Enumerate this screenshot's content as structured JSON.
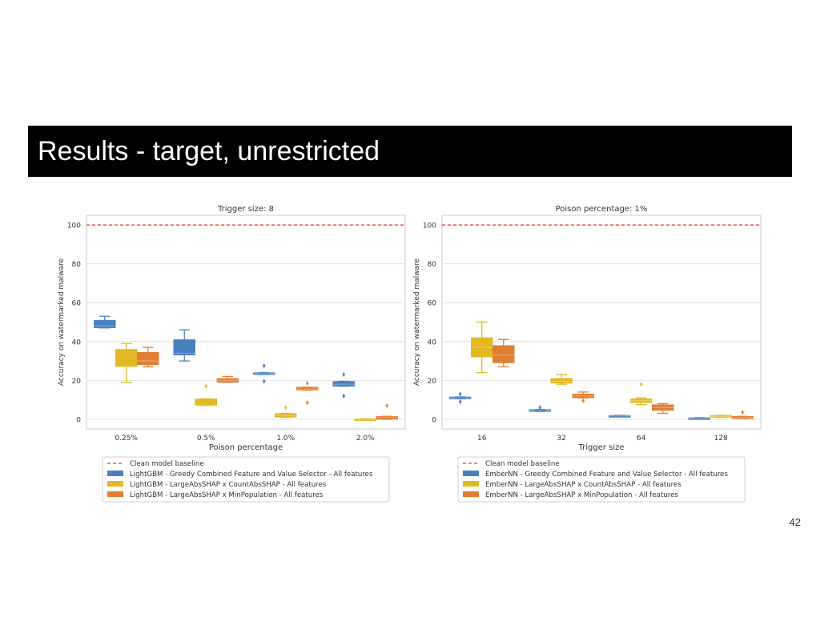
{
  "slide": {
    "title": "Results - target, unrestricted",
    "page_number": "42",
    "title_bar_color": "#000000"
  },
  "colors": {
    "baseline": "#e8312a",
    "greedy": "#4a7fbf",
    "countabs": "#e2b923",
    "minpop": "#e07f34"
  },
  "chart_data": [
    {
      "type": "box",
      "title": "Trigger size: 8",
      "xlabel": "Poison percentage",
      "ylabel": "Accuracy on watermarked malware",
      "categories": [
        "0.25%",
        "0.5%",
        "1.0%",
        "2.0%"
      ],
      "ylim": [
        -5,
        105
      ],
      "yticks": [
        0,
        20,
        40,
        60,
        80,
        100
      ],
      "grid": true,
      "baseline": {
        "name": "Clean model baseline",
        "value": 100
      },
      "legend_position": "below",
      "series": [
        {
          "name": "LightGBM - Greedy Combined Feature and Value Selector - All features",
          "color_key": "greedy",
          "boxes": [
            {
              "min": 47,
              "q1": 47,
              "median": 48,
              "q3": 51,
              "max": 53,
              "outliers": []
            },
            {
              "min": 30,
              "q1": 33,
              "median": 34,
              "q3": 41,
              "max": 46,
              "outliers": []
            },
            {
              "min": 23,
              "q1": 23,
              "median": 23.5,
              "q3": 24,
              "max": 24,
              "outliers": [
                27.5,
                19.5
              ]
            },
            {
              "min": 17,
              "q1": 17,
              "median": 18,
              "q3": 19.5,
              "max": 19.5,
              "outliers": [
                23,
                12
              ]
            }
          ]
        },
        {
          "name": "LightGBM - LargeAbsSHAP x CountAbsSHAP - All features",
          "color_key": "countabs",
          "boxes": [
            {
              "min": 19,
              "q1": 27,
              "median": 27,
              "q3": 36,
              "max": 39,
              "outliers": []
            },
            {
              "min": 7,
              "q1": 7,
              "median": 7,
              "q3": 10.5,
              "max": 10.5,
              "outliers": [
                17
              ]
            },
            {
              "min": 1,
              "q1": 1,
              "median": 2,
              "q3": 3,
              "max": 3,
              "outliers": [
                6
              ]
            },
            {
              "min": 0,
              "q1": 0,
              "median": 0,
              "q3": 0.3,
              "max": 0.3,
              "outliers": []
            }
          ]
        },
        {
          "name": "LightGBM - LargeAbsSHAP x MinPopulation - All features",
          "color_key": "minpop",
          "boxes": [
            {
              "min": 27,
              "q1": 28,
              "median": 30,
              "q3": 34.5,
              "max": 37,
              "outliers": []
            },
            {
              "min": 19,
              "q1": 19,
              "median": 20,
              "q3": 21,
              "max": 22,
              "outliers": []
            },
            {
              "min": 15,
              "q1": 15,
              "median": 15.5,
              "q3": 16.5,
              "max": 16.5,
              "outliers": [
                18.5,
                8.5
              ]
            },
            {
              "min": 0,
              "q1": 0,
              "median": 1,
              "q3": 1.5,
              "max": 1.5,
              "outliers": [
                7
              ]
            }
          ]
        }
      ]
    },
    {
      "type": "box",
      "title": "Poison percentage: 1%",
      "xlabel": "Trigger size",
      "ylabel": "Accuracy on watermarked malware",
      "categories": [
        "16",
        "32",
        "64",
        "128"
      ],
      "ylim": [
        -5,
        105
      ],
      "yticks": [
        0,
        20,
        40,
        60,
        80,
        100
      ],
      "grid": true,
      "baseline": {
        "name": "Clean model baseline",
        "value": 100
      },
      "legend_position": "below",
      "series": [
        {
          "name": "EmberNN - Greedy Combined Feature and Value Selector - All features",
          "color_key": "greedy",
          "boxes": [
            {
              "min": 10.5,
              "q1": 10.5,
              "median": 11,
              "q3": 11.5,
              "max": 11.5,
              "outliers": [
                13,
                9
              ]
            },
            {
              "min": 4,
              "q1": 4,
              "median": 4.5,
              "q3": 5,
              "max": 5,
              "outliers": [
                6
              ]
            },
            {
              "min": 1.5,
              "q1": 1.5,
              "median": 1.7,
              "q3": 2,
              "max": 2,
              "outliers": []
            },
            {
              "min": 0.3,
              "q1": 0.3,
              "median": 0.5,
              "q3": 0.8,
              "max": 0.8,
              "outliers": []
            }
          ]
        },
        {
          "name": "EmberNN - LargeAbsSHAP x CountAbsSHAP - All features",
          "color_key": "countabs",
          "boxes": [
            {
              "min": 24,
              "q1": 32,
              "median": 37,
              "q3": 42,
              "max": 50,
              "outliers": []
            },
            {
              "min": 18,
              "q1": 18.5,
              "median": 19.5,
              "q3": 21,
              "max": 23,
              "outliers": []
            },
            {
              "min": 7.5,
              "q1": 8.5,
              "median": 9.5,
              "q3": 10.5,
              "max": 11,
              "outliers": [
                18
              ]
            },
            {
              "min": 1,
              "q1": 1,
              "median": 1.5,
              "q3": 2,
              "max": 2,
              "outliers": []
            }
          ]
        },
        {
          "name": "EmberNN - LargeAbsSHAP x MinPopulation - All features",
          "color_key": "minpop",
          "boxes": [
            {
              "min": 27,
              "q1": 29,
              "median": 33,
              "q3": 38,
              "max": 41,
              "outliers": []
            },
            {
              "min": 11,
              "q1": 11,
              "median": 12,
              "q3": 13,
              "max": 14,
              "outliers": [
                9.5
              ]
            },
            {
              "min": 3,
              "q1": 4.5,
              "median": 6,
              "q3": 7.5,
              "max": 8,
              "outliers": []
            },
            {
              "min": 0.3,
              "q1": 0.3,
              "median": 0.8,
              "q3": 1.5,
              "max": 1.5,
              "outliers": [
                3.5
              ]
            }
          ]
        }
      ]
    }
  ]
}
